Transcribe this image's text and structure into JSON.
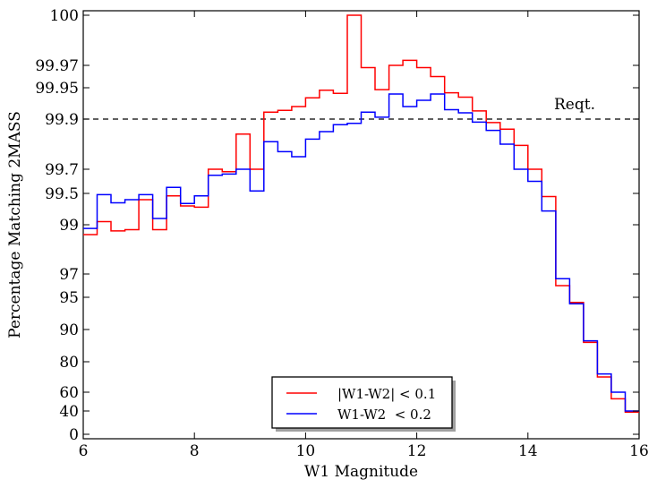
{
  "chart_data": {
    "type": "line",
    "step": true,
    "xlabel": "W1 Magnitude",
    "ylabel": "Percentage Matching 2MASS",
    "xlim": [
      6,
      16
    ],
    "xticks": [
      "6",
      "8",
      "10",
      "12",
      "14",
      "16"
    ],
    "yticks": [
      "0",
      "40",
      "60",
      "80",
      "90",
      "95",
      "97",
      "99",
      "99.5",
      "99.7",
      "99.9",
      "99.95",
      "99.97",
      "100"
    ],
    "grid": false,
    "legend_position": "bottom-center",
    "reference_line": {
      "label": "Reqt.",
      "y": 99.9,
      "style": "dashed"
    },
    "bin_edges": [
      6.0,
      6.25,
      6.5,
      6.75,
      7.0,
      7.25,
      7.5,
      7.75,
      8.0,
      8.25,
      8.5,
      8.75,
      9.0,
      9.25,
      9.5,
      9.75,
      10.0,
      10.25,
      10.5,
      10.75,
      11.0,
      11.25,
      11.5,
      11.75,
      12.0,
      12.25,
      12.5,
      12.75,
      13.0,
      13.25,
      13.5,
      13.75,
      14.0,
      14.25,
      14.5,
      14.75,
      15.0,
      15.25,
      15.5,
      15.75,
      16.0
    ],
    "series": [
      {
        "name": "|W1-W2| < 0.1",
        "color": "#ff0000",
        "values": [
          98.6,
          99.05,
          98.75,
          98.8,
          99.4,
          98.8,
          99.46,
          99.3,
          99.28,
          99.7,
          99.68,
          99.84,
          99.7,
          99.911,
          99.914,
          99.92,
          99.934,
          99.946,
          99.941,
          100.0,
          99.968,
          99.947,
          99.97,
          99.973,
          99.968,
          99.96,
          99.942,
          99.935,
          99.913,
          99.886,
          99.86,
          99.795,
          99.7,
          99.45,
          96.0,
          94.2,
          86.0,
          70.0,
          53.0,
          38.0
        ]
      },
      {
        "name": "W1-W2  < 0.2",
        "color": "#0000ff",
        "values": [
          98.85,
          99.48,
          99.35,
          99.4,
          99.48,
          99.1,
          99.55,
          99.34,
          99.46,
          99.65,
          99.66,
          99.7,
          99.52,
          99.81,
          99.77,
          99.75,
          99.82,
          99.85,
          99.878,
          99.883,
          99.911,
          99.903,
          99.94,
          99.92,
          99.93,
          99.94,
          99.915,
          99.91,
          99.888,
          99.855,
          99.8,
          99.7,
          99.6,
          99.22,
          96.6,
          94.0,
          86.5,
          72.0,
          60.0,
          40.0
        ]
      }
    ]
  },
  "annotation": {
    "reqt_label": "Reqt."
  }
}
